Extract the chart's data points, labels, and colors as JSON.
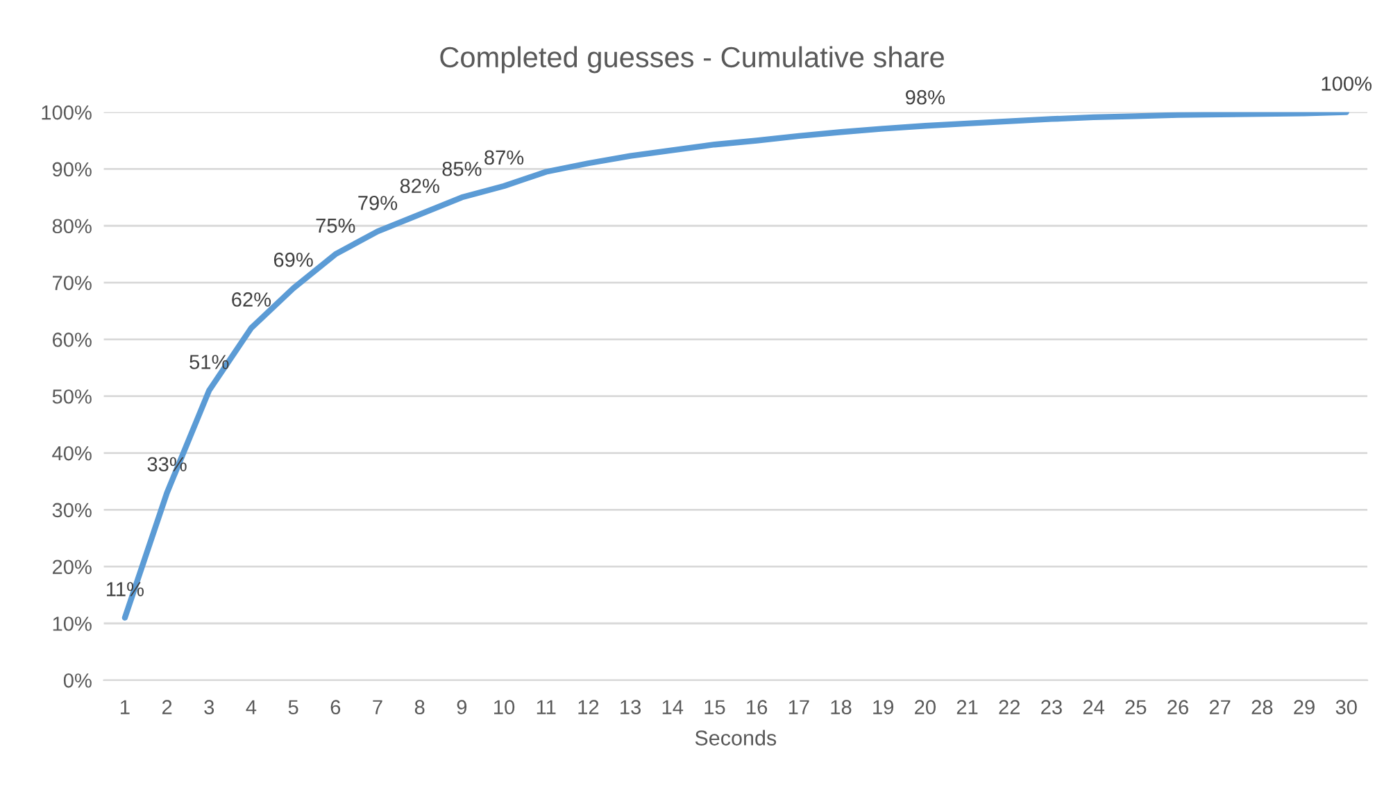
{
  "chart_data": {
    "type": "line",
    "title": "Completed guesses - Cumulative share",
    "xlabel": "Seconds",
    "categories": [
      "1",
      "2",
      "3",
      "4",
      "5",
      "6",
      "7",
      "8",
      "9",
      "10",
      "11",
      "12",
      "13",
      "14",
      "15",
      "16",
      "17",
      "18",
      "19",
      "20",
      "21",
      "22",
      "23",
      "24",
      "25",
      "26",
      "27",
      "28",
      "29",
      "30"
    ],
    "series": [
      {
        "color": "#5b9bd5",
        "values": [
          11,
          33,
          51,
          62,
          69,
          75,
          79,
          82,
          85,
          87,
          89.5,
          91,
          92.3,
          93.3,
          94.3,
          95,
          95.8,
          96.5,
          97.1,
          97.6,
          98,
          98.4,
          98.8,
          99.1,
          99.3,
          99.5,
          99.6,
          99.7,
          99.8,
          100
        ],
        "value_labels": [
          "11%",
          "33%",
          "51%",
          "62%",
          "69%",
          "75%",
          "79%",
          "82%",
          "85%",
          "87%",
          null,
          null,
          null,
          null,
          null,
          null,
          null,
          null,
          null,
          "98%",
          null,
          null,
          null,
          null,
          null,
          null,
          null,
          null,
          null,
          "100%"
        ]
      }
    ],
    "ylim": [
      0,
      100
    ],
    "yticks": [
      {
        "value": 0,
        "label": "0%"
      },
      {
        "value": 10,
        "label": "10%"
      },
      {
        "value": 20,
        "label": "20%"
      },
      {
        "value": 30,
        "label": "30%"
      },
      {
        "value": 40,
        "label": "40%"
      },
      {
        "value": 50,
        "label": "50%"
      },
      {
        "value": 60,
        "label": "60%"
      },
      {
        "value": 70,
        "label": "70%"
      },
      {
        "value": 80,
        "label": "80%"
      },
      {
        "value": 90,
        "label": "90%"
      },
      {
        "value": 100,
        "label": "100%"
      }
    ],
    "grid": "y",
    "marker": "none",
    "line_style": "solid"
  }
}
